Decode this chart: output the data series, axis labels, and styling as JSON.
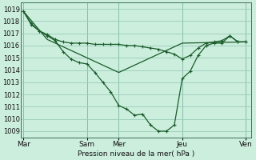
{
  "background_color": "#cceedd",
  "grid_color": "#99ccbb",
  "line_color": "#1a5c2a",
  "ylabel_text": "Pression niveau de la mer( hPa )",
  "ylim": [
    1008.5,
    1019.5
  ],
  "yticks": [
    1009,
    1010,
    1011,
    1012,
    1013,
    1014,
    1015,
    1016,
    1017,
    1018,
    1019
  ],
  "x_day_labels": [
    "Mar",
    "Sam",
    "Mer",
    "Jeu",
    "Ven"
  ],
  "x_day_positions": [
    0,
    96,
    144,
    240,
    336
  ],
  "xlim": [
    -4,
    344
  ],
  "vline_positions": [
    0,
    96,
    144,
    240,
    336
  ],
  "line1_x": [
    0,
    12,
    24,
    36,
    48,
    60,
    72,
    84,
    96,
    108,
    120,
    132,
    144,
    156,
    168,
    180,
    192,
    204,
    216,
    228,
    240,
    252,
    264,
    276,
    288,
    300,
    312,
    324,
    336
  ],
  "line1_y": [
    1018.8,
    1017.7,
    1017.2,
    1016.9,
    1016.5,
    1016.3,
    1016.2,
    1016.2,
    1016.2,
    1016.1,
    1016.1,
    1016.1,
    1016.1,
    1016.0,
    1016.0,
    1015.9,
    1015.8,
    1015.7,
    1015.5,
    1015.3,
    1014.9,
    1015.2,
    1015.8,
    1016.2,
    1016.3,
    1016.4,
    1016.8,
    1016.3,
    1016.3
  ],
  "line2_x": [
    0,
    12,
    24,
    36,
    48,
    60,
    72,
    84,
    96,
    108,
    120,
    132,
    144,
    156,
    168,
    180,
    192,
    204,
    216,
    228,
    240,
    252,
    264,
    276,
    288,
    300,
    312,
    324,
    336
  ],
  "line2_y": [
    1018.8,
    1017.8,
    1017.2,
    1016.8,
    1016.4,
    1015.5,
    1014.9,
    1014.6,
    1014.5,
    1013.8,
    1013.0,
    1012.2,
    1011.1,
    1010.8,
    1010.3,
    1010.4,
    1009.5,
    1009.0,
    1009.0,
    1009.5,
    1013.3,
    1013.9,
    1015.2,
    1016.0,
    1016.2,
    1016.2,
    1016.8,
    1016.3,
    1016.3
  ],
  "line3_x": [
    0,
    36,
    144,
    240,
    336
  ],
  "line3_y": [
    1018.8,
    1016.5,
    1013.8,
    1016.2,
    1016.3
  ]
}
